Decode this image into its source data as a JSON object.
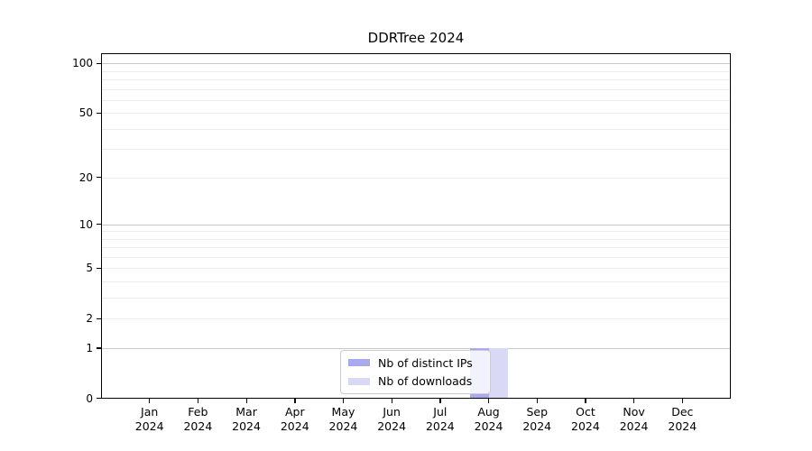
{
  "chart_data": {
    "type": "bar",
    "title": "DDRTree 2024",
    "categories": [
      [
        "Jan",
        "2024"
      ],
      [
        "Feb",
        "2024"
      ],
      [
        "Mar",
        "2024"
      ],
      [
        "Apr",
        "2024"
      ],
      [
        "May",
        "2024"
      ],
      [
        "Jun",
        "2024"
      ],
      [
        "Jul",
        "2024"
      ],
      [
        "Aug",
        "2024"
      ],
      [
        "Sep",
        "2024"
      ],
      [
        "Oct",
        "2024"
      ],
      [
        "Nov",
        "2024"
      ],
      [
        "Dec",
        "2024"
      ]
    ],
    "series": [
      {
        "name": "Nb of distinct IPs",
        "color": "#a9a9ed",
        "values": [
          0,
          0,
          0,
          0,
          0,
          0,
          0,
          1,
          0,
          0,
          0,
          0
        ]
      },
      {
        "name": "Nb of downloads",
        "color": "#d9d9f6",
        "values": [
          0,
          0,
          0,
          0,
          0,
          0,
          0,
          1,
          0,
          0,
          0,
          0
        ]
      }
    ],
    "yscale": "log1p",
    "ylim": [
      0,
      114
    ],
    "yticks": [
      0,
      1,
      2,
      5,
      10,
      20,
      50,
      100
    ],
    "minor_gridlines": [
      2,
      3,
      4,
      5,
      6,
      7,
      8,
      9,
      20,
      30,
      40,
      50,
      60,
      70,
      80,
      90
    ],
    "decade_gridlines": [
      1,
      10,
      100
    ],
    "grid_color_minor": "#ececec",
    "grid_color_major": "#c9c9c9",
    "legend_position": "lower center",
    "xlabel": "",
    "ylabel": ""
  }
}
